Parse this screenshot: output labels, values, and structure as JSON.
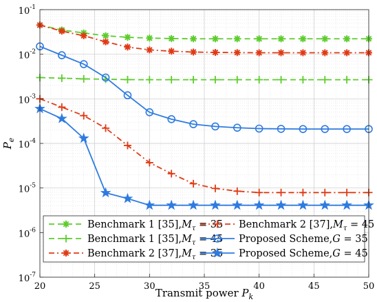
{
  "chart_data": {
    "type": "line",
    "xlabel": "Transmit power P_k",
    "ylabel": "P_e",
    "xlim": [
      20,
      50
    ],
    "ylim": [
      1e-07,
      0.1
    ],
    "y_scale": "log",
    "grid": true,
    "minor_grid": true,
    "legend_position": "lower-center",
    "legend_columns": 2,
    "x_ticks": [
      20,
      25,
      30,
      35,
      40,
      45,
      50
    ],
    "y_ticks": [
      {
        "base": "10",
        "exp": "-7",
        "value": 1e-07
      },
      {
        "base": "10",
        "exp": "-6",
        "value": 1e-06
      },
      {
        "base": "10",
        "exp": "-5",
        "value": 1e-05
      },
      {
        "base": "10",
        "exp": "-4",
        "value": 0.0001
      },
      {
        "base": "10",
        "exp": "-3",
        "value": 0.001
      },
      {
        "base": "10",
        "exp": "-2",
        "value": 0.01
      },
      {
        "base": "10",
        "exp": "-1",
        "value": 0.1
      }
    ],
    "x": [
      20,
      22,
      24,
      26,
      28,
      30,
      32,
      34,
      36,
      38,
      40,
      42,
      44,
      46,
      48,
      50
    ],
    "series": [
      {
        "name": "Benchmark 1 [35],M_τ = 35",
        "color": "#5ccc2c",
        "dash": "dashed",
        "marker": "asterisk",
        "values": [
          0.045,
          0.035,
          0.03,
          0.026,
          0.024,
          0.023,
          0.0225,
          0.0222,
          0.0222,
          0.0222,
          0.0222,
          0.0222,
          0.0222,
          0.0222,
          0.0222,
          0.0222
        ]
      },
      {
        "name": "Benchmark 1 [35],M_τ = 45",
        "color": "#5ccc2c",
        "dash": "dashed",
        "marker": "plus",
        "values": [
          0.003,
          0.0029,
          0.0028,
          0.00275,
          0.0027,
          0.00268,
          0.00268,
          0.00268,
          0.00268,
          0.00268,
          0.00268,
          0.00268,
          0.00268,
          0.00268,
          0.00268,
          0.00268
        ]
      },
      {
        "name": "Benchmark 2 [37],M_τ = 35",
        "color": "#e03a14",
        "dash": "dashdot",
        "marker": "asterisk",
        "values": [
          0.045,
          0.033,
          0.026,
          0.019,
          0.0145,
          0.0125,
          0.0117,
          0.0112,
          0.011,
          0.0109,
          0.0108,
          0.0108,
          0.0108,
          0.0108,
          0.0108,
          0.0108
        ]
      },
      {
        "name": "Benchmark 2 [37],M_τ = 45",
        "color": "#e03a14",
        "dash": "dashdot",
        "marker": "plus",
        "values": [
          0.001,
          0.00065,
          0.00042,
          0.00022,
          9e-05,
          3.7e-05,
          2.1e-05,
          1.25e-05,
          9.8e-06,
          8.5e-06,
          7.9e-06,
          7.9e-06,
          7.9e-06,
          7.9e-06,
          7.9e-06,
          7.9e-06
        ]
      },
      {
        "name": "Proposed Scheme,G = 35",
        "color": "#2e7be0",
        "dash": "solid",
        "marker": "circle",
        "values": [
          0.015,
          0.0095,
          0.006,
          0.003,
          0.0012,
          0.0005,
          0.00035,
          0.00027,
          0.00024,
          0.000225,
          0.000215,
          0.000212,
          0.00021,
          0.00021,
          0.00021,
          0.00021
        ]
      },
      {
        "name": "Proposed Scheme,G = 45",
        "color": "#2e7be0",
        "dash": "solid",
        "marker": "star",
        "values": [
          0.0006,
          0.00036,
          0.00013,
          7.8e-06,
          5.8e-06,
          4.1e-06,
          4.1e-06,
          4.1e-06,
          4.1e-06,
          4.1e-06,
          4.1e-06,
          4.1e-06,
          4.1e-06,
          4.1e-06,
          4.1e-06,
          4.1e-06
        ]
      }
    ],
    "legend_entries": [
      {
        "series": 0,
        "main": "Benchmark 1 [35],",
        "var": "M",
        "sub": "τ",
        "eq": " = 35"
      },
      {
        "series": 3,
        "main": "Benchmark 2 [37],",
        "var": "M",
        "sub": "τ",
        "eq": " = 45"
      },
      {
        "series": 1,
        "main": "Benchmark 1 [35],",
        "var": "M",
        "sub": "τ",
        "eq": " = 45"
      },
      {
        "series": 4,
        "main": "Proposed Scheme,",
        "var": "G",
        "sub": "",
        "eq": " = 35"
      },
      {
        "series": 2,
        "main": "Benchmark 2 [37],",
        "var": "M",
        "sub": "τ",
        "eq": " = 35"
      },
      {
        "series": 5,
        "main": "Proposed Scheme,",
        "var": "G",
        "sub": "",
        "eq": " = 45"
      }
    ],
    "xlabel_parts": {
      "main": "Transmit power ",
      "var": "P",
      "sub": "k"
    },
    "ylabel_parts": {
      "var": "P",
      "sub": "e"
    }
  }
}
